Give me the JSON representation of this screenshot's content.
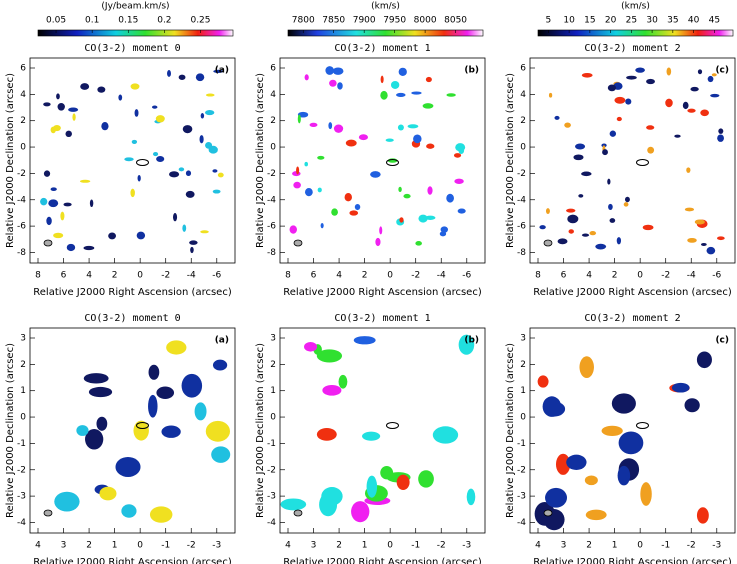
{
  "colorbars": [
    {
      "unit": "(Jy/beam.km/s)",
      "ticks": [
        0.05,
        0.1,
        0.15,
        0.2,
        0.25
      ]
    },
    {
      "unit": "(km/s)",
      "ticks": [
        7800,
        7850,
        7900,
        7950,
        8000,
        8050
      ]
    },
    {
      "unit": "(km/s)",
      "ticks": [
        5,
        10,
        15,
        20,
        25,
        30,
        35,
        40,
        45
      ]
    }
  ],
  "panels": [
    {
      "title": "CO(3-2) moment 0",
      "tag": "(a)",
      "xlabel": "Relative J2000 Right Ascension (arcsec)",
      "ylabel": "Relative J2000 Declination (arcsec)",
      "xticks": [
        8,
        6,
        4,
        2,
        0,
        -2,
        -4,
        -6
      ],
      "yticks": [
        6,
        4,
        2,
        0,
        -2,
        -4,
        -6,
        -8
      ]
    },
    {
      "title": "CO(3-2) moment 1",
      "tag": "(b)",
      "xlabel": "Relative J2000 Right Ascension (arcsec)",
      "ylabel": "Relative J2000 Declination (arcsec)",
      "xticks": [
        8,
        6,
        4,
        2,
        0,
        -2,
        -4,
        -6
      ],
      "yticks": [
        6,
        4,
        2,
        0,
        -2,
        -4,
        -6,
        -8
      ]
    },
    {
      "title": "CO(3-2) moment 2",
      "tag": "(c)",
      "xlabel": "Relative J2000 Right Ascension (arcsec)",
      "ylabel": "Relative J2000 Declination (arcsec)",
      "xticks": [
        8,
        6,
        4,
        2,
        0,
        -2,
        -4,
        -6
      ],
      "yticks": [
        6,
        4,
        2,
        0,
        -2,
        -4,
        -6,
        -8
      ]
    },
    {
      "title": "CO(3-2) moment 0",
      "tag": "(a)",
      "xlabel": "Relative J2000 Right Ascension (arcsec)",
      "ylabel": "Relative J2000 Declination (arcsec)",
      "xticks": [
        4,
        3,
        2,
        1,
        0,
        -1,
        -2,
        -3
      ],
      "yticks": [
        3,
        2,
        1,
        0,
        -1,
        -2,
        -3,
        -4
      ]
    },
    {
      "title": "CO(3-2) moment 1",
      "tag": "(b)",
      "xlabel": "Relative J2000 Right Ascension (arcsec)",
      "ylabel": "Relative J2000 Declination (arcsec)",
      "xticks": [
        4,
        3,
        2,
        1,
        0,
        -1,
        -2,
        -3
      ],
      "yticks": [
        3,
        2,
        1,
        0,
        -1,
        -2,
        -3,
        -4
      ]
    },
    {
      "title": "CO(3-2) moment 2",
      "tag": "(c)",
      "xlabel": "Relative J2000 Right Ascension (arcsec)",
      "ylabel": "Relative J2000 Declination (arcsec)",
      "xticks": [
        4,
        3,
        2,
        1,
        0,
        -1,
        -2,
        -3
      ],
      "yticks": [
        3,
        2,
        1,
        0,
        -1,
        -2,
        -3,
        -4
      ]
    }
  ]
}
